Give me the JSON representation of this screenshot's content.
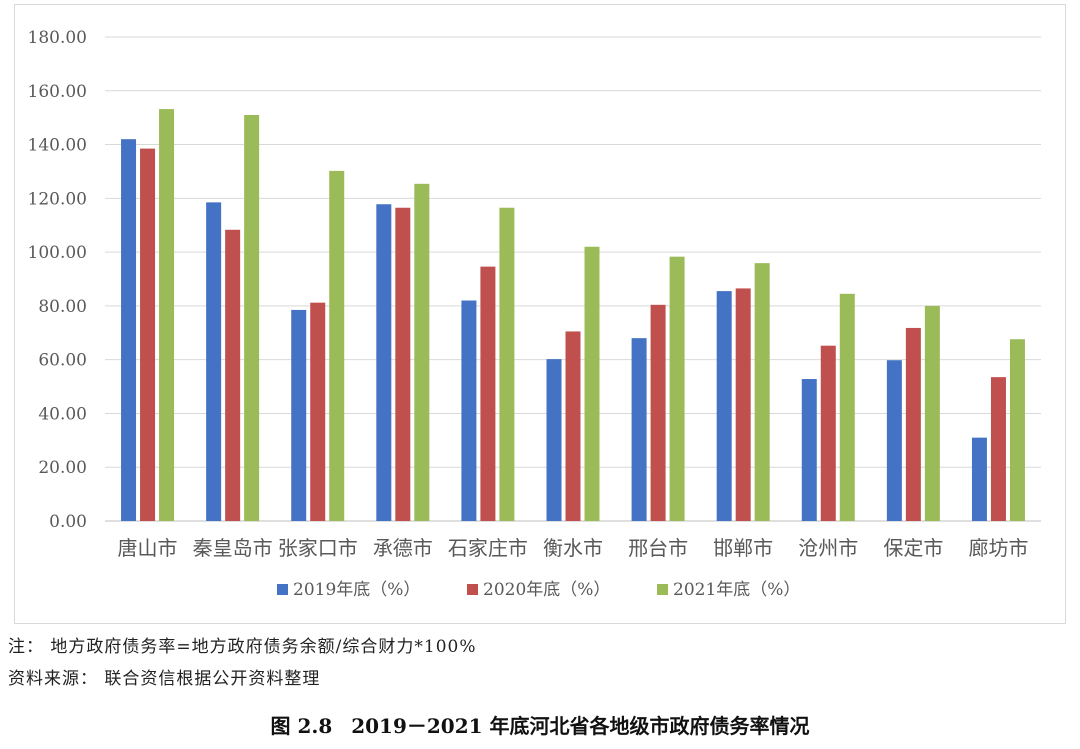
{
  "chart_data": {
    "type": "bar",
    "categories": [
      "唐山市",
      "秦皇岛市",
      "张家口市",
      "承德市",
      "石家庄市",
      "衡水市",
      "邢台市",
      "邯郸市",
      "沧州市",
      "保定市",
      "廊坊市"
    ],
    "series": [
      {
        "name": "2019年底（%）",
        "color": "#4472c4",
        "values": [
          142,
          118.5,
          78.5,
          117.8,
          82,
          60.2,
          68,
          85.5,
          52.8,
          59.8,
          31
        ]
      },
      {
        "name": "2020年底（%）",
        "color": "#c0504d",
        "values": [
          138.5,
          108.3,
          81.2,
          116.5,
          94.6,
          70.5,
          80.4,
          86.5,
          65.2,
          71.8,
          53.5
        ]
      },
      {
        "name": "2021年底（%）",
        "color": "#9bbb59",
        "values": [
          153.2,
          151,
          130.2,
          125.4,
          116.5,
          102,
          98.3,
          95.9,
          84.5,
          80,
          67.6
        ]
      }
    ],
    "y_ticks": [
      "0.00",
      "20.00",
      "40.00",
      "60.00",
      "80.00",
      "100.00",
      "120.00",
      "140.00",
      "160.00",
      "180.00"
    ],
    "ylim": [
      0,
      180
    ],
    "grid": true,
    "legend_position": "bottom"
  },
  "notes": {
    "formula": "注：  地方政府债务率=地方政府债务余额/综合财力*100%",
    "source": "资料来源：  联合资信根据公开资料整理"
  },
  "caption": {
    "figure_no": "图 2.8",
    "title": "2019－2021 年底河北省各地级市政府债务率情况"
  }
}
